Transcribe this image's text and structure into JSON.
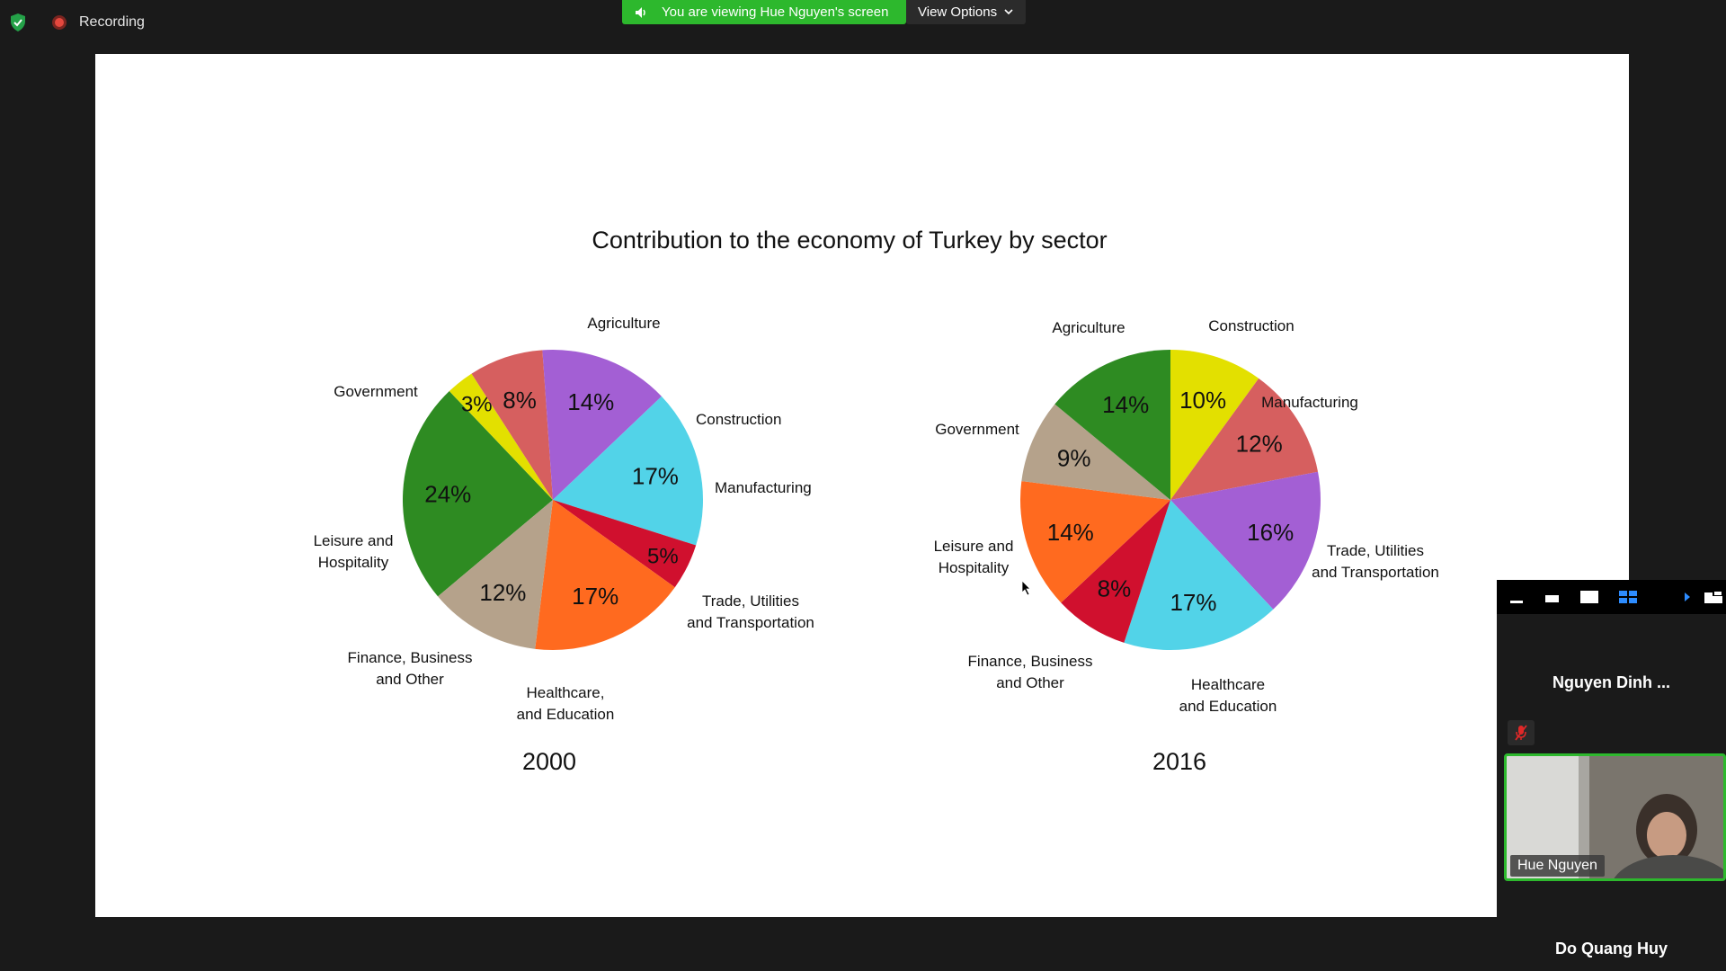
{
  "recording": {
    "label": "Recording"
  },
  "share_banner": {
    "viewing_text": "You are viewing Hue Nguyen's screen",
    "view_options_label": "View Options"
  },
  "colors": {
    "green_accent": "#2db82d",
    "agriculture": "#2e8b22",
    "construction": "#e3e000",
    "manufacturing": "#d65f5f",
    "trade": "#a35fd4",
    "healthcare": "#52d3e8",
    "finance": "#d0102e",
    "leisure": "#ff6a1f",
    "government": "#b5a28b"
  },
  "chart_data": {
    "type": "pie",
    "title": "Contribution to the economy of Turkey by sector",
    "charts": [
      {
        "year": "2000",
        "slices": [
          {
            "category": "Agriculture",
            "value": 24,
            "label": "24%",
            "color": "#2e8b22"
          },
          {
            "category": "Construction",
            "value": 3,
            "label": "3%",
            "color": "#e3e000"
          },
          {
            "category": "Manufacturing",
            "value": 8,
            "label": "8%",
            "color": "#d65f5f"
          },
          {
            "category": "Trade, Utilities and Transportation",
            "value": 14,
            "label": "14%",
            "color": "#a35fd4"
          },
          {
            "category": "Healthcare, and Education",
            "value": 17,
            "label": "17%",
            "color": "#52d3e8"
          },
          {
            "category": "Finance, Business and Other",
            "value": 5,
            "label": "5%",
            "color": "#d0102e"
          },
          {
            "category": "Leisure and Hospitality",
            "value": 17,
            "label": "17%",
            "color": "#ff6a1f"
          },
          {
            "category": "Government",
            "value": 12,
            "label": "12%",
            "color": "#b5a28b"
          }
        ]
      },
      {
        "year": "2016",
        "slices": [
          {
            "category": "Construction",
            "value": 10,
            "label": "10%",
            "color": "#e3e000"
          },
          {
            "category": "Manufacturing",
            "value": 12,
            "label": "12%",
            "color": "#d65f5f"
          },
          {
            "category": "Trade, Utilities and Transportation",
            "value": 16,
            "label": "16%",
            "color": "#a35fd4"
          },
          {
            "category": "Healthcare and Education",
            "value": 17,
            "label": "17%",
            "color": "#52d3e8"
          },
          {
            "category": "Finance, Business and Other",
            "value": 8,
            "label": "8%",
            "color": "#d0102e"
          },
          {
            "category": "Leisure and Hospitality",
            "value": 14,
            "label": "14%",
            "color": "#ff6a1f"
          },
          {
            "category": "Government",
            "value": 9,
            "label": "9%",
            "color": "#b5a28b"
          },
          {
            "category": "Agriculture",
            "value": 14,
            "label": "14%",
            "color": "#2e8b22"
          }
        ]
      }
    ]
  },
  "participants_panel": {
    "participants": [
      {
        "name": "Nguyen Dinh ..."
      },
      {
        "name": "Hue Nguyen"
      },
      {
        "name": "Do Quang Huy"
      }
    ]
  }
}
